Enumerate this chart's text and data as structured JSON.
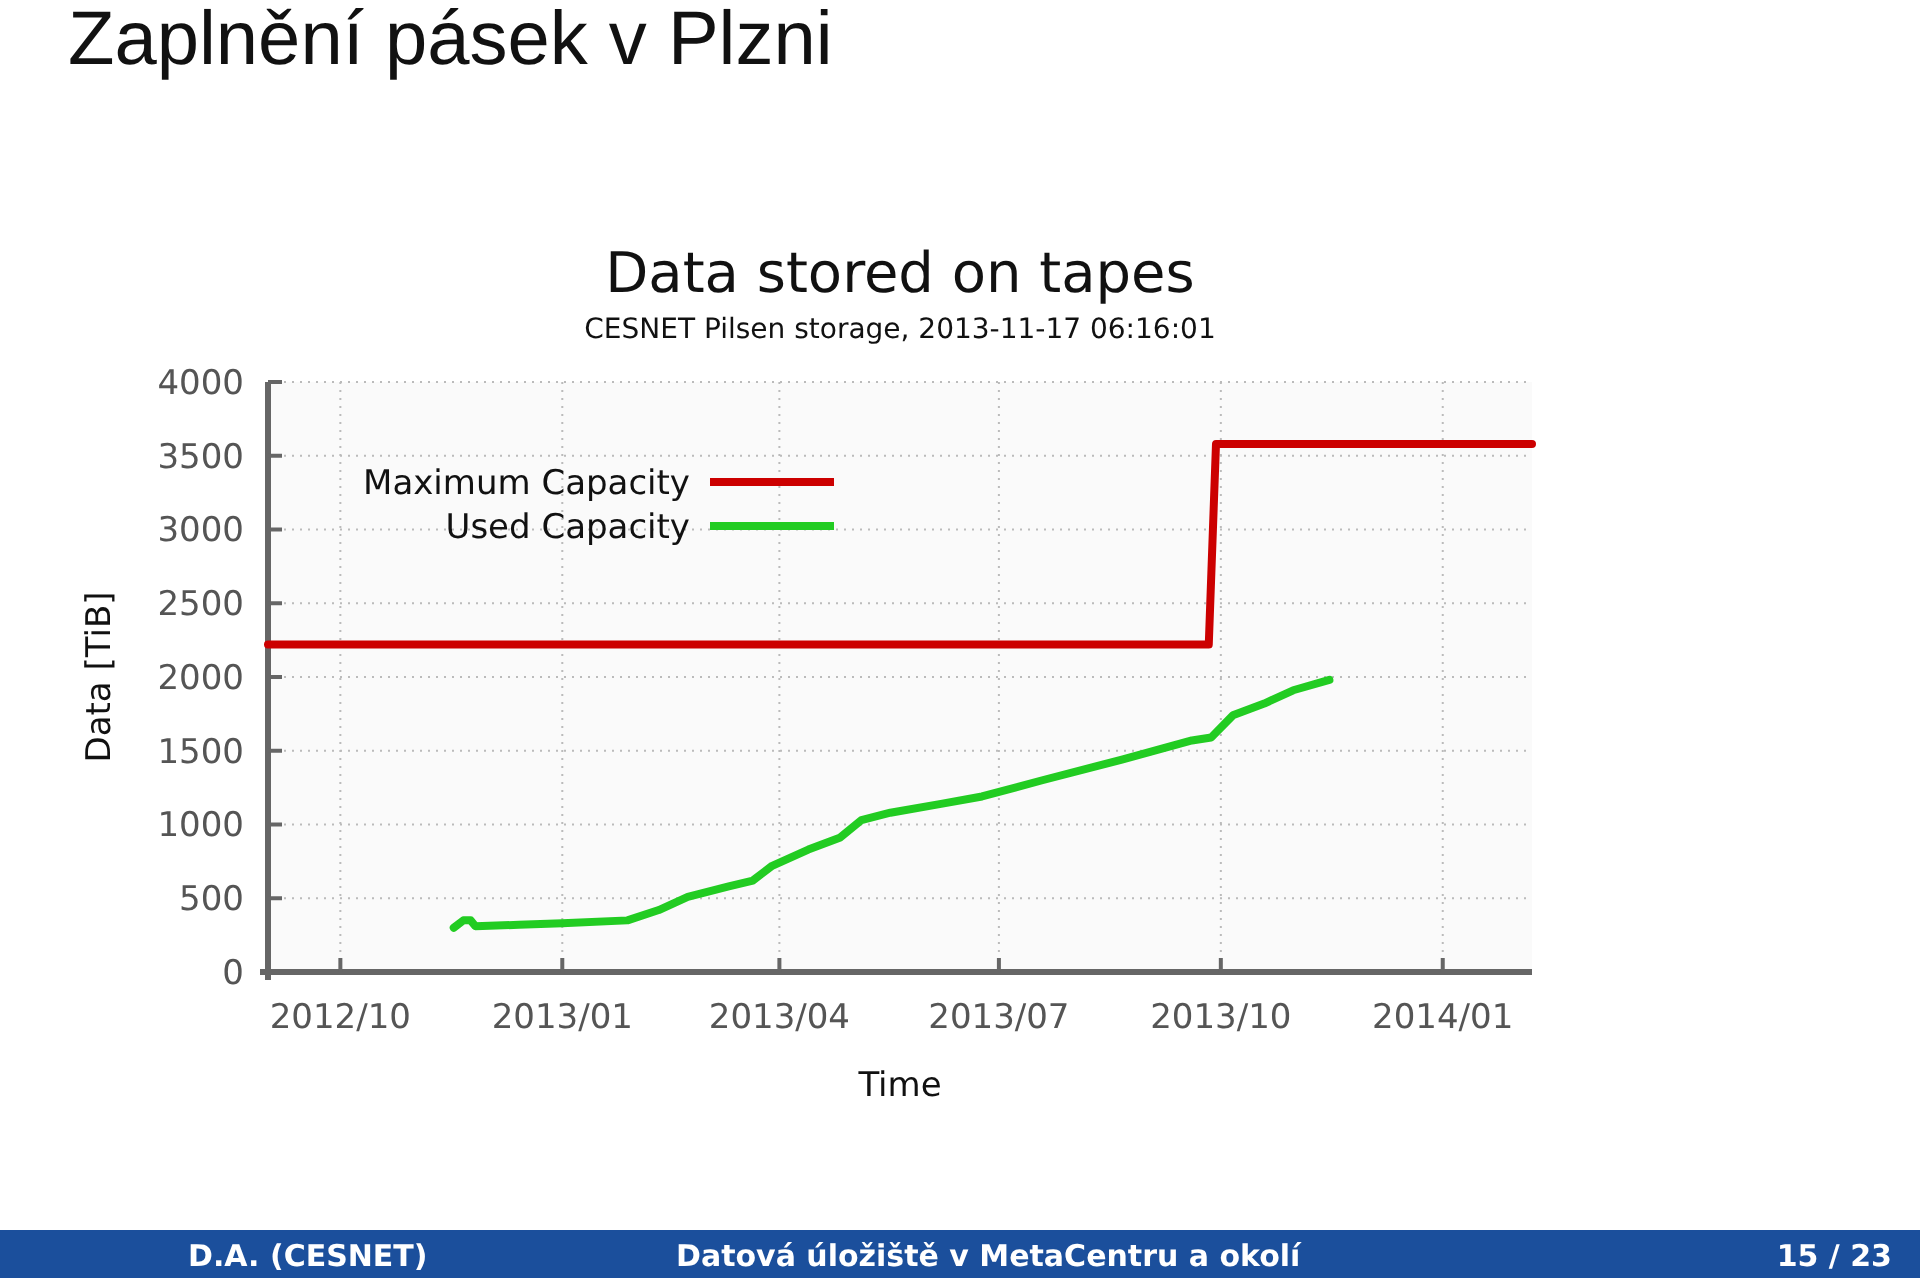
{
  "chart_data": {
    "type": "line",
    "title": "Data stored on tapes",
    "subtitle": "CESNET Pilsen storage, 2013-11-17 06:16:01",
    "xlabel": "Time",
    "ylabel": "Data [TiB]",
    "annotations": [
      "Zaplnění pásek v Plzni",
      "D.A. (CESNET)",
      "Datová úložiště v MetaCentru a okolí",
      "15 / 23"
    ],
    "xlim": [
      "2012-09-01",
      "2014-02-07"
    ],
    "xticks": [
      {
        "value": "2012-10-01",
        "label": "2012/10"
      },
      {
        "value": "2013-01-01",
        "label": "2013/01"
      },
      {
        "value": "2013-04-01",
        "label": "2013/04"
      },
      {
        "value": "2013-07-01",
        "label": "2013/07"
      },
      {
        "value": "2013-10-01",
        "label": "2013/10"
      },
      {
        "value": "2014-01-01",
        "label": "2014/01"
      }
    ],
    "ylim": [
      0,
      4000
    ],
    "yticks": [
      0,
      500,
      1000,
      1500,
      2000,
      2500,
      3000,
      3500,
      4000
    ],
    "grid": true,
    "legend": "top left",
    "marker": "none",
    "line_style": "solid",
    "series": [
      {
        "name": "Maximum Capacity",
        "color": "#cc0000",
        "x": [
          "2012-09-01",
          "2013-09-26",
          "2013-09-29",
          "2014-02-07"
        ],
        "values": [
          2220,
          2220,
          3580,
          3580
        ]
      },
      {
        "name": "Used Capacity",
        "color": "#22cc22",
        "x": [
          "2012-11-17",
          "2012-11-21",
          "2012-11-24",
          "2012-11-26",
          "2012-12-14",
          "2013-01-01",
          "2013-01-28",
          "2013-02-10",
          "2013-02-22",
          "2013-03-11",
          "2013-03-21",
          "2013-03-29",
          "2013-04-13",
          "2013-04-26",
          "2013-05-05",
          "2013-05-17",
          "2013-06-07",
          "2013-06-24",
          "2013-07-19",
          "2013-08-21",
          "2013-09-19",
          "2013-09-27",
          "2013-10-06",
          "2013-10-19",
          "2013-10-31",
          "2013-11-15"
        ],
        "values": [
          300,
          350,
          350,
          310,
          320,
          330,
          350,
          420,
          510,
          580,
          620,
          720,
          830,
          910,
          1030,
          1080,
          1140,
          1190,
          1300,
          1440,
          1570,
          1590,
          1740,
          1820,
          1910,
          1980
        ]
      }
    ]
  }
}
